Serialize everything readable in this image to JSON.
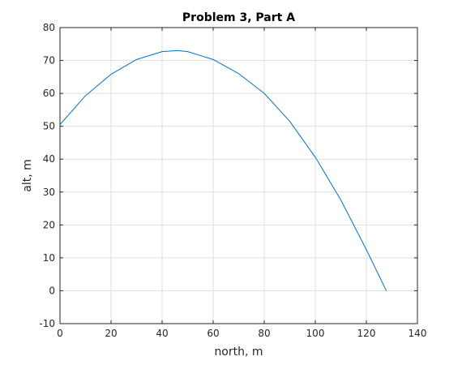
{
  "chart_data": {
    "type": "line",
    "title": "Problem 3, Part A",
    "xlabel": "north, m",
    "ylabel": "alt, m",
    "xlim": [
      0,
      140
    ],
    "ylim": [
      -10,
      80
    ],
    "xticks": [
      0,
      20,
      40,
      60,
      80,
      100,
      120,
      140
    ],
    "yticks": [
      -10,
      0,
      10,
      20,
      30,
      40,
      50,
      60,
      70,
      80
    ],
    "grid": true,
    "colors": {
      "line": "#0072BD",
      "grid": "#dfdfdf",
      "axis": "#262626"
    },
    "series": [
      {
        "x": [
          0,
          10,
          20,
          30,
          40,
          46,
          50,
          60,
          70,
          80,
          90,
          100,
          110,
          120,
          125,
          127.8
        ],
        "y": [
          50.5,
          59.3,
          65.8,
          70.3,
          72.7,
          73.0,
          72.7,
          70.3,
          66.0,
          60.0,
          51.5,
          40.6,
          27.6,
          12.5,
          4.5,
          0
        ]
      }
    ]
  }
}
